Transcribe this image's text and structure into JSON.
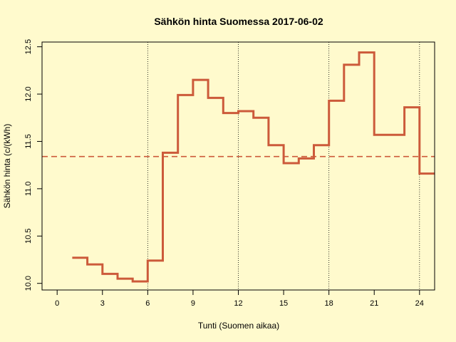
{
  "chart_data": {
    "type": "line",
    "step": true,
    "title": "Sähkön hinta Suomessa 2017-06-02",
    "xlabel": "Tunti (Suomen aikaa)",
    "ylabel": "Sähkön hinta (c/(kWh)",
    "xlim": [
      -1,
      25
    ],
    "ylim": [
      9.93,
      12.55
    ],
    "x_ticks": [
      0,
      3,
      6,
      9,
      12,
      15,
      18,
      21,
      24
    ],
    "y_ticks": [
      10.0,
      10.5,
      11.0,
      11.5,
      12.0,
      12.5
    ],
    "vertical_gridlines": [
      6,
      12,
      18,
      24
    ],
    "series": [
      {
        "color": "#cc5a3a",
        "x": [
          1,
          2,
          3,
          4,
          5,
          6,
          7,
          8,
          9,
          10,
          11,
          12,
          13,
          14,
          15,
          16,
          17,
          18,
          19,
          20,
          21,
          22,
          23,
          24
        ],
        "values": [
          10.27,
          10.2,
          10.1,
          10.05,
          10.02,
          10.24,
          11.38,
          11.99,
          12.15,
          11.96,
          11.8,
          11.82,
          11.75,
          11.46,
          11.27,
          11.32,
          11.46,
          11.93,
          12.31,
          12.44,
          11.57,
          11.57,
          11.86,
          11.16
        ]
      }
    ],
    "mean_line": {
      "value": 11.34,
      "color": "#cc5a3a",
      "style": "dashed"
    }
  }
}
